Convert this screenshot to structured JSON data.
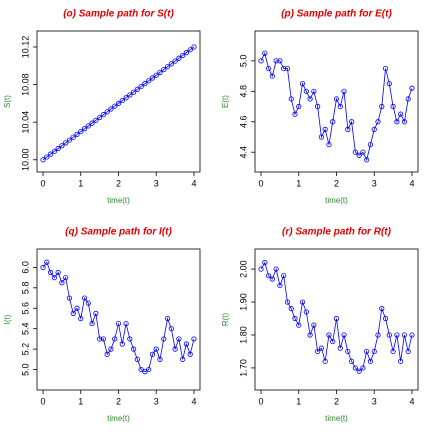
{
  "chart_data": [
    {
      "type": "line",
      "title": "(o) Sample path for S(t)",
      "xlabel": "time(t)",
      "ylabel": "S(t)",
      "x": [
        0,
        0.1,
        0.2,
        0.3,
        0.4,
        0.5,
        0.6,
        0.7,
        0.8,
        0.9,
        1,
        1.1,
        1.2,
        1.3,
        1.4,
        1.5,
        1.6,
        1.7,
        1.8,
        1.9,
        2,
        2.1,
        2.2,
        2.3,
        2.4,
        2.5,
        2.6,
        2.7,
        2.8,
        2.9,
        3,
        3.1,
        3.2,
        3.3,
        3.4,
        3.5,
        3.6,
        3.7,
        3.8,
        3.9,
        4
      ],
      "series": [
        {
          "color": "#0000ff",
          "values": [
            10.0,
            10.003,
            10.006,
            10.009,
            10.012,
            10.015,
            10.018,
            10.021,
            10.024,
            10.027,
            10.03,
            10.033,
            10.036,
            10.039,
            10.042,
            10.045,
            10.048,
            10.051,
            10.054,
            10.057,
            10.06,
            10.063,
            10.066,
            10.069,
            10.072,
            10.075,
            10.078,
            10.081,
            10.084,
            10.087,
            10.09,
            10.093,
            10.096,
            10.099,
            10.102,
            10.105,
            10.108,
            10.111,
            10.114,
            10.117,
            10.12
          ]
        }
      ],
      "xlim": [
        -0.16,
        4.16
      ],
      "xticks": [
        0,
        1,
        2,
        3,
        4
      ],
      "ylim": [
        9.987,
        10.137
      ],
      "yticks": [
        {
          "value": 10,
          "label": "10.00"
        },
        10.04,
        10.08,
        10.12
      ]
    },
    {
      "type": "line",
      "title": "(p) Sample path for E(t)",
      "xlabel": "time(t)",
      "ylabel": "E(t)",
      "x": [
        0,
        0.1,
        0.2,
        0.3,
        0.4,
        0.5,
        0.6,
        0.7,
        0.8,
        0.9,
        1,
        1.1,
        1.2,
        1.3,
        1.4,
        1.5,
        1.6,
        1.7,
        1.8,
        1.9,
        2,
        2.1,
        2.2,
        2.3,
        2.4,
        2.5,
        2.6,
        2.7,
        2.8,
        2.9,
        3,
        3.1,
        3.2,
        3.3,
        3.4,
        3.5,
        3.6,
        3.7,
        3.8,
        3.9,
        4
      ],
      "series": [
        {
          "color": "#0000ff",
          "values": [
            5.0,
            5.05,
            4.95,
            4.9,
            5.0,
            5.0,
            4.95,
            4.95,
            4.75,
            4.65,
            4.7,
            4.85,
            4.8,
            4.75,
            4.8,
            4.7,
            4.5,
            4.55,
            4.45,
            4.6,
            4.75,
            4.7,
            4.8,
            4.55,
            4.6,
            4.4,
            4.38,
            4.4,
            4.35,
            4.45,
            4.55,
            4.6,
            4.7,
            4.95,
            4.85,
            4.7,
            4.6,
            4.65,
            4.6,
            4.75,
            4.82
          ]
        }
      ],
      "xlim": [
        -0.16,
        4.16
      ],
      "xticks": [
        0,
        1,
        2,
        3,
        4
      ],
      "ylim": [
        4.27,
        5.196
      ],
      "yticks": [
        4.4,
        4.6,
        4.8,
        {
          "value": 5,
          "label": "5.0"
        }
      ]
    },
    {
      "type": "line",
      "title": "(q) Sample path for I(t)",
      "xlabel": "time(t)",
      "ylabel": "I(t)",
      "x": [
        0,
        0.1,
        0.2,
        0.3,
        0.4,
        0.5,
        0.6,
        0.7,
        0.8,
        0.9,
        1,
        1.1,
        1.2,
        1.3,
        1.4,
        1.5,
        1.6,
        1.7,
        1.8,
        1.9,
        2,
        2.1,
        2.2,
        2.3,
        2.4,
        2.5,
        2.6,
        2.7,
        2.8,
        2.9,
        3,
        3.1,
        3.2,
        3.3,
        3.4,
        3.5,
        3.6,
        3.7,
        3.8,
        3.9,
        4
      ],
      "series": [
        {
          "color": "#0000ff",
          "values": [
            6.0,
            6.05,
            5.95,
            5.9,
            5.95,
            5.85,
            5.9,
            5.7,
            5.55,
            5.6,
            5.5,
            5.7,
            5.65,
            5.45,
            5.55,
            5.3,
            5.3,
            5.15,
            5.2,
            5.3,
            5.45,
            5.25,
            5.45,
            5.3,
            5.2,
            5.1,
            5.0,
            4.98,
            5.0,
            5.15,
            5.2,
            5.1,
            5.3,
            5.5,
            5.4,
            5.2,
            5.3,
            5.1,
            5.25,
            5.15,
            5.3
          ]
        }
      ],
      "xlim": [
        -0.16,
        4.16
      ],
      "xticks": [
        0,
        1,
        2,
        3,
        4
      ],
      "ylim": [
        4.8,
        6.18
      ],
      "yticks": [
        {
          "value": 5,
          "label": "5.0"
        },
        5.2,
        5.4,
        5.6,
        5.8,
        {
          "value": 6,
          "label": "6.0"
        }
      ]
    },
    {
      "type": "line",
      "title": "(r) Sample path for R(t)",
      "xlabel": "time(t)",
      "ylabel": "R(t)",
      "x": [
        0,
        0.1,
        0.2,
        0.3,
        0.4,
        0.5,
        0.6,
        0.7,
        0.8,
        0.9,
        1,
        1.1,
        1.2,
        1.3,
        1.4,
        1.5,
        1.6,
        1.7,
        1.8,
        1.9,
        2,
        2.1,
        2.2,
        2.3,
        2.4,
        2.5,
        2.6,
        2.7,
        2.8,
        2.9,
        3,
        3.1,
        3.2,
        3.3,
        3.4,
        3.5,
        3.6,
        3.7,
        3.8,
        3.9,
        4
      ],
      "series": [
        {
          "color": "#0000ff",
          "values": [
            2.0,
            2.02,
            1.98,
            1.97,
            2.0,
            1.95,
            1.98,
            1.9,
            1.88,
            1.85,
            1.83,
            1.9,
            1.87,
            1.8,
            1.83,
            1.75,
            1.76,
            1.72,
            1.8,
            1.78,
            1.85,
            1.76,
            1.8,
            1.75,
            1.72,
            1.7,
            1.69,
            1.7,
            1.75,
            1.72,
            1.75,
            1.8,
            1.88,
            1.85,
            1.8,
            1.75,
            1.8,
            1.72,
            1.8,
            1.75,
            1.8
          ]
        }
      ],
      "xlim": [
        -0.16,
        4.16
      ],
      "xticks": [
        0,
        1,
        2,
        3,
        4
      ],
      "ylim": [
        1.633,
        2.061
      ],
      "yticks": [
        {
          "value": 1.7,
          "label": "1.70"
        },
        {
          "value": 1.8,
          "label": "1.80"
        },
        {
          "value": 1.9,
          "label": "1.90"
        },
        {
          "value": 2,
          "label": "2.00"
        }
      ]
    }
  ]
}
